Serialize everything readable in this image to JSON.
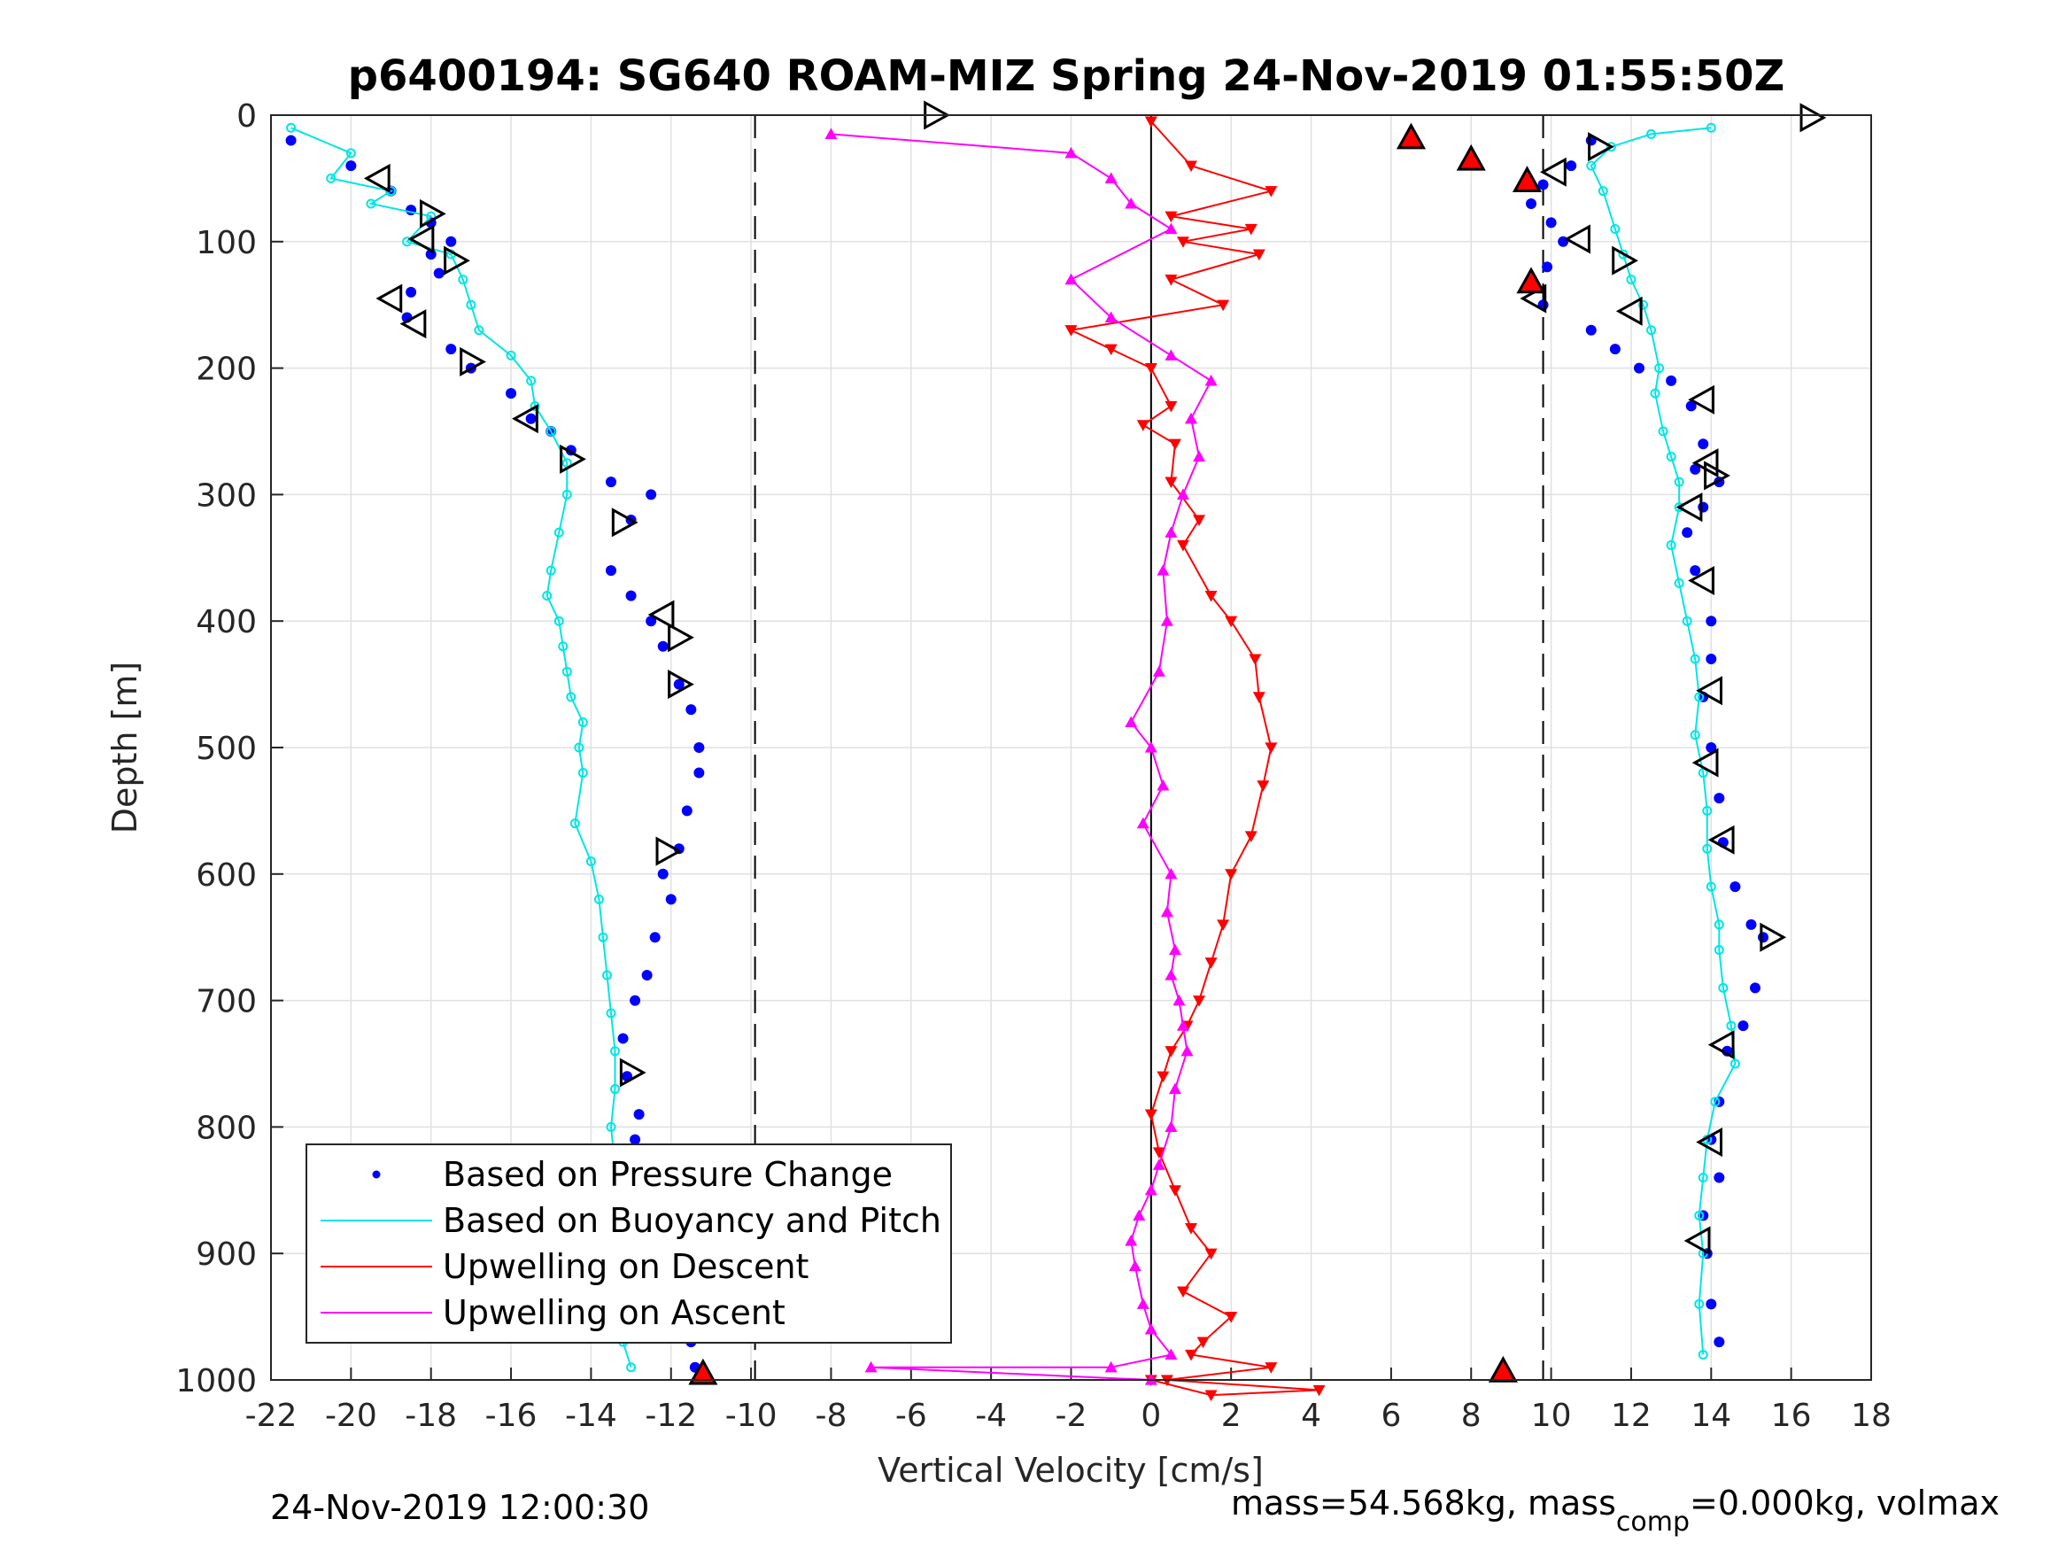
{
  "chart_data": {
    "type": "scatter",
    "title": "p6400194: SG640 ROAM-MIZ Spring 24-Nov-2019 01:55:50Z",
    "xlabel": "Vertical Velocity [cm/s]",
    "ylabel": "Depth [m]",
    "xlim": [
      -22,
      18
    ],
    "ylim": [
      0,
      1000
    ],
    "y_reversed": true,
    "grid": true,
    "xticks": [
      -22,
      -20,
      -18,
      -16,
      -14,
      -12,
      -10,
      -8,
      -6,
      -4,
      -2,
      0,
      2,
      4,
      6,
      8,
      10,
      12,
      14,
      16,
      18
    ],
    "yticks": [
      0,
      100,
      200,
      300,
      400,
      500,
      600,
      700,
      800,
      900,
      1000
    ],
    "vlines": [
      {
        "x": -9.9,
        "style": "dashed",
        "color": "#000000"
      },
      {
        "x": 0,
        "style": "solid",
        "color": "#000000"
      },
      {
        "x": 9.8,
        "style": "dashed",
        "color": "#000000"
      }
    ],
    "legend_position": "bottom-left",
    "series": [
      {
        "name": "Based on Pressure Change",
        "color": "#0000ff",
        "style": "dots",
        "branches": [
          {
            "x": [
              -21.5,
              -20,
              -19,
              -18.5,
              -18,
              -17.5,
              -18,
              -17.8,
              -18.5,
              -18.6,
              -17.5,
              -17,
              -16,
              -15.5,
              -15,
              -14.5,
              -13.5,
              -12.5,
              -13,
              -13.5,
              -13,
              -12.5,
              -12.2,
              -11.8,
              -11.5,
              -11.3,
              -11.3,
              -11.6,
              -11.8,
              -12.2,
              -12,
              -12.4,
              -12.6,
              -12.9,
              -13.2,
              -13.1,
              -12.8,
              -12.9,
              -13.2,
              -12.7,
              -12.5,
              -12.1,
              -11.8,
              -11.6,
              -11.5,
              -11.4
            ],
            "y": [
              20,
              40,
              60,
              75,
              85,
              100,
              110,
              125,
              140,
              160,
              185,
              200,
              220,
              240,
              250,
              265,
              290,
              300,
              320,
              360,
              380,
              400,
              420,
              450,
              470,
              500,
              520,
              550,
              580,
              600,
              620,
              650,
              680,
              700,
              730,
              760,
              790,
              810,
              840,
              870,
              890,
              910,
              930,
              950,
              970,
              990
            ]
          },
          {
            "x": [
              11,
              10.5,
              9.8,
              9.5,
              10,
              10.3,
              9.9,
              9.6,
              9.8,
              11,
              11.6,
              12.2,
              13,
              13.5,
              13.8,
              13.6,
              14.2,
              13.8,
              13.4,
              13.6,
              14,
              14,
              13.8,
              14,
              14.2,
              14.3,
              14.6,
              15,
              15.3,
              15.1,
              14.8,
              14.4,
              14.2,
              14,
              14.2,
              13.8,
              13.9,
              14,
              14.2
            ],
            "y": [
              20,
              40,
              55,
              70,
              85,
              100,
              120,
              135,
              150,
              170,
              185,
              200,
              210,
              230,
              260,
              280,
              290,
              310,
              330,
              360,
              400,
              430,
              460,
              500,
              540,
              575,
              610,
              640,
              650,
              690,
              720,
              740,
              780,
              810,
              840,
              870,
              900,
              940,
              970
            ]
          }
        ]
      },
      {
        "name": "Based on Buoyancy and Pitch",
        "color": "#00e5e5",
        "style": "line-circles",
        "branches": [
          {
            "x": [
              -21.5,
              -20,
              -20.5,
              -19,
              -19.5,
              -18,
              -18.6,
              -17.5,
              -17.2,
              -17,
              -16.8,
              -16,
              -15.5,
              -15.4,
              -15,
              -14.6,
              -14.6,
              -14.8,
              -15,
              -15.1,
              -14.8,
              -14.7,
              -14.6,
              -14.5,
              -14.2,
              -14.3,
              -14.2,
              -14.4,
              -14,
              -13.8,
              -13.7,
              -13.6,
              -13.5,
              -13.4,
              -13.4,
              -13.5,
              -13.4,
              -13.4,
              -13.2,
              -13.3,
              -13.3,
              -13.2,
              -13
            ],
            "y": [
              10,
              30,
              50,
              60,
              70,
              80,
              100,
              110,
              130,
              150,
              170,
              190,
              210,
              230,
              250,
              275,
              300,
              330,
              360,
              380,
              400,
              420,
              440,
              460,
              480,
              500,
              520,
              560,
              590,
              620,
              650,
              680,
              710,
              740,
              770,
              800,
              830,
              860,
              890,
              920,
              950,
              970,
              990
            ]
          },
          {
            "x": [
              14,
              12.5,
              11.5,
              11,
              11.3,
              11.6,
              11.8,
              12,
              12.3,
              12.5,
              12.7,
              12.6,
              12.8,
              13,
              13.2,
              13.2,
              13,
              13.2,
              13.4,
              13.6,
              13.7,
              13.6,
              13.8,
              13.9,
              13.9,
              14,
              14.2,
              14.2,
              14.3,
              14.5,
              14.6,
              14.1,
              13.9,
              13.8,
              13.7,
              13.8,
              13.7,
              13.8
            ],
            "y": [
              10,
              15,
              25,
              40,
              60,
              90,
              110,
              130,
              150,
              170,
              200,
              220,
              250,
              270,
              290,
              310,
              340,
              370,
              400,
              430,
              460,
              490,
              520,
              550,
              580,
              610,
              640,
              660,
              690,
              720,
              750,
              780,
              810,
              840,
              870,
              900,
              940,
              980
            ]
          }
        ]
      },
      {
        "name": "Upwelling on Descent",
        "color": "#ff0000",
        "style": "line-down-triangles",
        "branches": [
          {
            "x": [
              0,
              1,
              3,
              0.5,
              2.5,
              0.8,
              2.7,
              0.5,
              1.8,
              -2,
              -1,
              0,
              0.5,
              -0.2,
              0.6,
              0.5,
              1.2,
              0.8,
              1.5,
              2,
              2.6,
              2.7,
              3,
              2.8,
              2.5,
              2,
              1.8,
              1.5,
              1.2,
              0.9,
              0.5,
              0.3,
              0,
              0.2,
              0.6,
              1,
              1.5,
              0.8,
              2,
              1.3,
              1,
              3,
              0.4,
              4.2,
              1.5,
              0
            ],
            "y": [
              5,
              40,
              60,
              80,
              90,
              100,
              110,
              130,
              150,
              170,
              185,
              200,
              230,
              245,
              260,
              290,
              320,
              340,
              380,
              400,
              430,
              460,
              500,
              530,
              570,
              600,
              640,
              670,
              700,
              720,
              740,
              760,
              790,
              820,
              850,
              880,
              900,
              930,
              950,
              970,
              980,
              990,
              1000,
              1008,
              1012,
              1000
            ]
          }
        ]
      },
      {
        "name": "Upwelling on Ascent",
        "color": "#ff00ff",
        "style": "line-up-triangles",
        "branches": [
          {
            "x": [
              -8,
              -2,
              -1,
              -0.5,
              0.5,
              -2,
              -1,
              0.5,
              1.5,
              1,
              1.2,
              0.8,
              0.5,
              0.3,
              0.4,
              0.2,
              -0.5,
              0,
              0.3,
              -0.2,
              0.5,
              0.4,
              0.6,
              0.5,
              0.7,
              0.8,
              0.9,
              0.6,
              0.5,
              0.2,
              0,
              -0.3,
              -0.5,
              -0.4,
              -0.2,
              0,
              0.5,
              -1,
              -7,
              0
            ],
            "y": [
              15,
              30,
              50,
              70,
              90,
              130,
              160,
              190,
              210,
              240,
              270,
              300,
              330,
              360,
              400,
              440,
              480,
              500,
              530,
              560,
              600,
              630,
              660,
              680,
              700,
              720,
              740,
              770,
              800,
              830,
              850,
              870,
              890,
              910,
              940,
              960,
              980,
              990,
              990,
              1000
            ]
          }
        ]
      }
    ],
    "markers": [
      {
        "shape": "right-triangle",
        "x": -5.4,
        "y": 0,
        "fill": "none"
      },
      {
        "shape": "right-triangle",
        "x": 16.5,
        "y": 2,
        "fill": "none"
      },
      {
        "shape": "right-triangle",
        "x": 11.2,
        "y": 25,
        "fill": "none"
      },
      {
        "shape": "left-triangle",
        "x": 10.1,
        "y": 45,
        "fill": "none"
      },
      {
        "shape": "left-triangle",
        "x": -19.3,
        "y": 50,
        "fill": "none"
      },
      {
        "shape": "right-triangle",
        "x": -18,
        "y": 78,
        "fill": "none"
      },
      {
        "shape": "left-triangle",
        "x": -18.2,
        "y": 98,
        "fill": "none"
      },
      {
        "shape": "left-triangle",
        "x": 10.7,
        "y": 98,
        "fill": "none"
      },
      {
        "shape": "right-triangle",
        "x": -17.4,
        "y": 115,
        "fill": "none"
      },
      {
        "shape": "right-triangle",
        "x": 11.8,
        "y": 115,
        "fill": "none"
      },
      {
        "shape": "left-triangle",
        "x": -19,
        "y": 145,
        "fill": "none"
      },
      {
        "shape": "left-triangle",
        "x": 9.6,
        "y": 145,
        "fill": "none"
      },
      {
        "shape": "left-triangle",
        "x": 12,
        "y": 155,
        "fill": "none"
      },
      {
        "shape": "left-triangle",
        "x": -18.4,
        "y": 165,
        "fill": "none"
      },
      {
        "shape": "right-triangle",
        "x": -17,
        "y": 195,
        "fill": "none"
      },
      {
        "shape": "left-triangle",
        "x": -15.6,
        "y": 240,
        "fill": "none"
      },
      {
        "shape": "left-triangle",
        "x": 13.8,
        "y": 225,
        "fill": "none"
      },
      {
        "shape": "right-triangle",
        "x": -14.5,
        "y": 272,
        "fill": "none"
      },
      {
        "shape": "left-triangle",
        "x": 13.9,
        "y": 275,
        "fill": "none"
      },
      {
        "shape": "right-triangle",
        "x": 14.1,
        "y": 285,
        "fill": "none"
      },
      {
        "shape": "right-triangle",
        "x": -13.2,
        "y": 322,
        "fill": "none"
      },
      {
        "shape": "left-triangle",
        "x": 13.5,
        "y": 310,
        "fill": "none"
      },
      {
        "shape": "left-triangle",
        "x": -12.2,
        "y": 395,
        "fill": "none"
      },
      {
        "shape": "left-triangle",
        "x": 13.8,
        "y": 368,
        "fill": "none"
      },
      {
        "shape": "right-triangle",
        "x": -11.8,
        "y": 413,
        "fill": "none"
      },
      {
        "shape": "right-triangle",
        "x": -11.8,
        "y": 450,
        "fill": "none"
      },
      {
        "shape": "left-triangle",
        "x": 14,
        "y": 455,
        "fill": "none"
      },
      {
        "shape": "left-triangle",
        "x": 13.9,
        "y": 512,
        "fill": "none"
      },
      {
        "shape": "right-triangle",
        "x": -12.1,
        "y": 582,
        "fill": "none"
      },
      {
        "shape": "left-triangle",
        "x": 14.3,
        "y": 573,
        "fill": "none"
      },
      {
        "shape": "right-triangle",
        "x": 15.5,
        "y": 650,
        "fill": "none"
      },
      {
        "shape": "right-triangle",
        "x": -13,
        "y": 757,
        "fill": "none"
      },
      {
        "shape": "left-triangle",
        "x": 14.3,
        "y": 735,
        "fill": "none"
      },
      {
        "shape": "left-triangle",
        "x": 14,
        "y": 812,
        "fill": "none"
      },
      {
        "shape": "left-triangle",
        "x": 13.7,
        "y": 890,
        "fill": "none"
      },
      {
        "shape": "right-triangle",
        "x": -12,
        "y": 915,
        "fill": "none"
      },
      {
        "shape": "right-triangle",
        "x": -11.8,
        "y": 945,
        "fill": "none"
      },
      {
        "shape": "up-triangle",
        "x": -11.2,
        "y": 995,
        "fill": "#ff0000"
      },
      {
        "shape": "up-triangle",
        "x": 8.8,
        "y": 993,
        "fill": "#ff0000"
      },
      {
        "shape": "up-triangle",
        "x": 6.5,
        "y": 18,
        "fill": "#ff0000"
      },
      {
        "shape": "up-triangle",
        "x": 8,
        "y": 35,
        "fill": "#ff0000"
      },
      {
        "shape": "up-triangle",
        "x": 9.4,
        "y": 52,
        "fill": "#ff0000"
      },
      {
        "shape": "up-triangle",
        "x": 9.5,
        "y": 132,
        "fill": "#ff0000"
      }
    ]
  },
  "footer": {
    "left": "24-Nov-2019 12:00:30",
    "right_before": "mass=54.568kg, mass",
    "right_sub": "comp",
    "right_after": "=0.000kg, volmax"
  }
}
